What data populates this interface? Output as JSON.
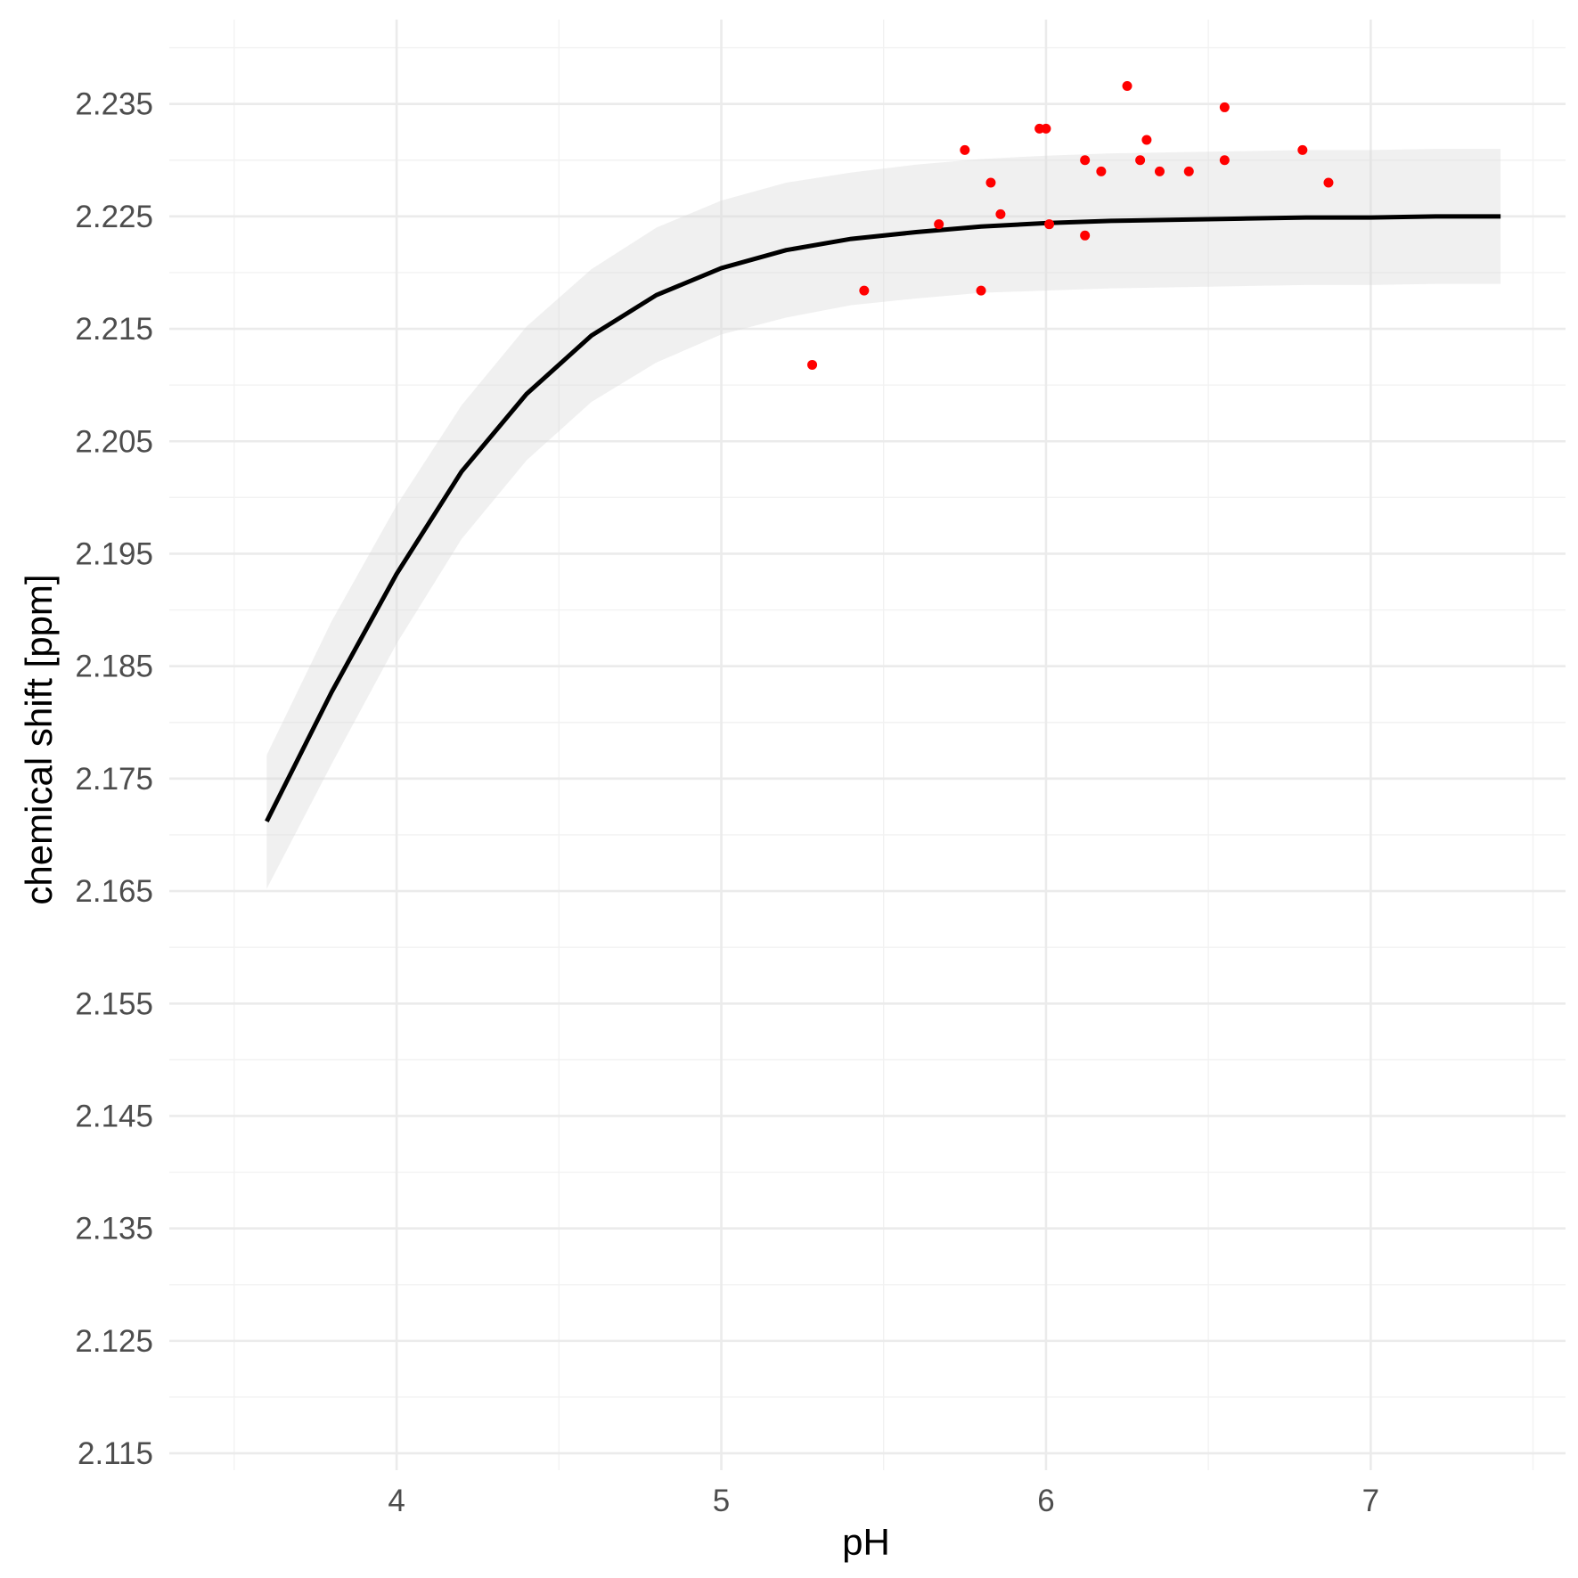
{
  "chart_data": {
    "type": "line",
    "title": "",
    "xlabel": "pH",
    "ylabel": "chemical shift [ppm]",
    "xlim": [
      3.3,
      7.6
    ],
    "ylim": [
      2.1135,
      2.2425
    ],
    "x_ticks": [
      4,
      5,
      6,
      7
    ],
    "x_minor_ticks": [
      3.5,
      4.5,
      5.5,
      6.5,
      7.5
    ],
    "y_ticks": [
      2.115,
      2.125,
      2.135,
      2.145,
      2.155,
      2.165,
      2.175,
      2.185,
      2.195,
      2.205,
      2.215,
      2.225,
      2.235
    ],
    "y_tick_labels": [
      "2.115",
      "2.125",
      "2.135",
      "2.145",
      "2.155",
      "2.165",
      "2.175",
      "2.185",
      "2.195",
      "2.205",
      "2.215",
      "2.225",
      "2.235"
    ],
    "y_minor_ticks": [
      2.12,
      2.13,
      2.14,
      2.15,
      2.16,
      2.17,
      2.18,
      2.19,
      2.2,
      2.21,
      2.22,
      2.23,
      2.24
    ],
    "grid": true,
    "fit_line": {
      "color": "#000000",
      "x": [
        3.6,
        3.8,
        4.0,
        4.2,
        4.4,
        4.6,
        4.8,
        5.0,
        5.2,
        5.4,
        5.6,
        5.8,
        6.0,
        6.2,
        6.4,
        6.6,
        6.8,
        7.0,
        7.2,
        7.4
      ],
      "y": [
        2.1712,
        2.1827,
        2.1932,
        2.2023,
        2.2092,
        2.2144,
        2.218,
        2.2204,
        2.222,
        2.223,
        2.2236,
        2.2241,
        2.2244,
        2.2246,
        2.2247,
        2.2248,
        2.2249,
        2.2249,
        2.225,
        2.225
      ]
    },
    "confidence_band": {
      "color": "#d9d9d9",
      "opacity": 0.4,
      "x": [
        3.6,
        3.8,
        4.0,
        4.2,
        4.4,
        4.6,
        4.8,
        5.0,
        5.2,
        5.4,
        5.6,
        5.8,
        6.0,
        6.2,
        6.4,
        6.6,
        6.8,
        7.0,
        7.2,
        7.4
      ],
      "upper": [
        2.1771,
        2.189,
        2.1993,
        2.2082,
        2.2152,
        2.2203,
        2.224,
        2.2264,
        2.228,
        2.2289,
        2.2296,
        2.2301,
        2.2304,
        2.2306,
        2.2307,
        2.2308,
        2.2309,
        2.2309,
        2.231,
        2.231
      ],
      "lower": [
        2.1652,
        2.1763,
        2.187,
        2.1963,
        2.2033,
        2.2085,
        2.212,
        2.2145,
        2.216,
        2.2171,
        2.2177,
        2.2182,
        2.2184,
        2.2186,
        2.2187,
        2.2188,
        2.2189,
        2.2189,
        2.219,
        2.219
      ]
    },
    "points": {
      "color": "#ff0000",
      "x": [
        5.28,
        5.44,
        5.67,
        5.75,
        5.8,
        5.83,
        5.86,
        5.98,
        6.0,
        6.01,
        6.12,
        6.12,
        6.17,
        6.25,
        6.29,
        6.31,
        6.35,
        6.44,
        6.55,
        6.55,
        6.79,
        6.87
      ],
      "y": [
        2.2118,
        2.2184,
        2.2243,
        2.2309,
        2.2184,
        2.228,
        2.2252,
        2.2328,
        2.2328,
        2.2243,
        2.23,
        2.2233,
        2.229,
        2.2366,
        2.23,
        2.2318,
        2.229,
        2.229,
        2.2347,
        2.23,
        2.2309,
        2.228
      ]
    }
  }
}
